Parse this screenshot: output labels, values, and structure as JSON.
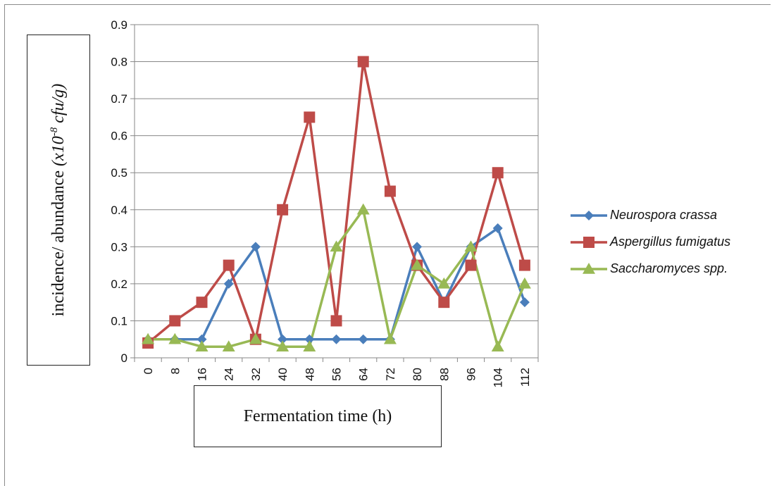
{
  "chart_data": {
    "type": "line",
    "xlabel": "Fermentation time (h)",
    "ylabel": {
      "prefix": "incidence/ abundance ",
      "unit_before": "(x10",
      "unit_exp": "-8",
      "unit_after": " cfu/g)"
    },
    "categories": [
      "0",
      "8",
      "16",
      "24",
      "32",
      "40",
      "48",
      "56",
      "64",
      "72",
      "80",
      "88",
      "96",
      "104",
      "112"
    ],
    "ylim": [
      0,
      0.9
    ],
    "yticks": [
      "0",
      "0.1",
      "0.2",
      "0.3",
      "0.4",
      "0.5",
      "0.6",
      "0.7",
      "0.8",
      "0.9"
    ],
    "ytick_values": [
      0,
      0.1,
      0.2,
      0.3,
      0.4,
      0.5,
      0.6,
      0.7,
      0.8,
      0.9
    ],
    "grid": "horizontal",
    "legend_position": "right",
    "series": [
      {
        "name": "Neurospora crassa",
        "color": "#4a7ebb",
        "marker": "diamond",
        "values": [
          0.05,
          0.05,
          0.05,
          0.2,
          0.3,
          0.05,
          0.05,
          0.05,
          0.05,
          0.05,
          0.3,
          0.15,
          0.3,
          0.35,
          0.15
        ]
      },
      {
        "name": "Aspergillus fumigatus",
        "color": "#be4b48",
        "marker": "square",
        "values": [
          0.04,
          0.1,
          0.15,
          0.25,
          0.05,
          0.4,
          0.65,
          0.1,
          0.8,
          0.45,
          0.25,
          0.15,
          0.25,
          0.5,
          0.25
        ]
      },
      {
        "name": "Saccharomyces spp.",
        "color": "#98b954",
        "marker": "triangle",
        "values": [
          0.05,
          0.05,
          0.03,
          0.03,
          0.05,
          0.03,
          0.03,
          0.3,
          0.4,
          0.05,
          0.25,
          0.2,
          0.3,
          0.03,
          0.2
        ]
      }
    ]
  }
}
